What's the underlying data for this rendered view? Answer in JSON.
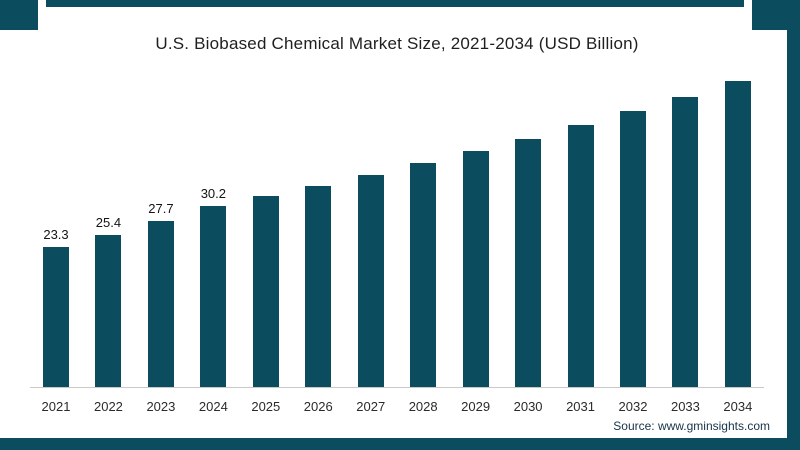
{
  "chart_data": {
    "type": "bar",
    "title": "U.S. Biobased Chemical Market Size, 2021-2034 (USD Billion)",
    "categories": [
      "2021",
      "2022",
      "2023",
      "2024",
      "2025",
      "2026",
      "2027",
      "2028",
      "2029",
      "2030",
      "2031",
      "2032",
      "2033",
      "2034"
    ],
    "values": [
      23.3,
      25.4,
      27.7,
      30.2,
      31.8,
      33.5,
      35.4,
      37.3,
      39.3,
      41.4,
      43.6,
      46.0,
      48.4,
      51.0
    ],
    "data_labels": [
      "23.3",
      "25.4",
      "27.7",
      "30.2"
    ],
    "labels_visible_count": 4,
    "xlabel": "",
    "ylabel": "",
    "ylim": [
      0,
      56
    ],
    "grid": false,
    "legend": "none",
    "bar_color": "#0b4d5e",
    "axis_line_color": "#c9c9c9"
  },
  "frame": {
    "color": "#0b4d5e"
  },
  "source": {
    "text": "Source: www.gminsights.com"
  }
}
